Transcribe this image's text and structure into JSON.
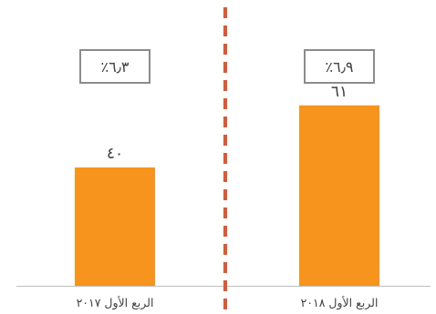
{
  "chart_data": {
    "type": "bar",
    "categories": [
      "الربع الأول ٢٠١٨",
      "الربع الأول ٢٠١٧"
    ],
    "values": [
      61,
      40
    ],
    "value_labels": [
      "٦١",
      "٤٠"
    ],
    "growth_labels": [
      "٪٦٫٩",
      "٪٦٫٣"
    ],
    "ylim": [
      0,
      80
    ],
    "grid": false,
    "legend": "none",
    "colors": {
      "bar": "#F7941D",
      "divider": "#E8542B",
      "box_border": "#8C8C8C",
      "axis": "#BFBFBF",
      "text": "#404040"
    }
  }
}
